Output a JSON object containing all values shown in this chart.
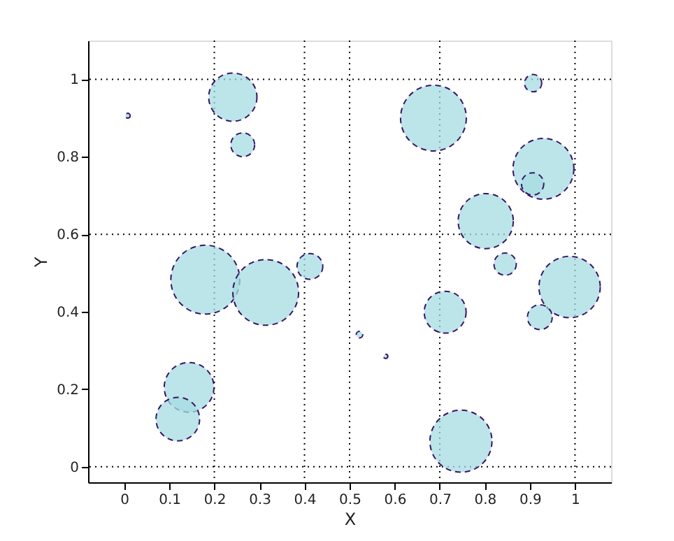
{
  "chart_data": {
    "type": "bubble",
    "xlabel": "X",
    "ylabel": "Y",
    "xlim": [
      -0.08,
      1.08
    ],
    "xticks": [
      0,
      0.1,
      0.2,
      0.3,
      0.4,
      0.5,
      0.6,
      0.7,
      0.8,
      0.9,
      1
    ],
    "ylim": [
      -0.04,
      1.1
    ],
    "yticks": [
      0,
      0.2,
      0.4,
      0.6,
      0.8,
      1
    ],
    "grid": false,
    "legend": false,
    "marker": "circle",
    "line_style": "dashed",
    "series": [
      {
        "color": "#a6dce2",
        "x": [
          0.008,
          0.241,
          0.263,
          0.18,
          0.314,
          0.412,
          0.907,
          0.686,
          0.93,
          0.906,
          0.802,
          0.845,
          0.988,
          0.712,
          0.922,
          0.522,
          0.58,
          0.144,
          0.119,
          0.747
        ],
        "values": [
          0.906,
          0.954,
          0.831,
          0.483,
          0.45,
          0.517,
          0.99,
          0.9,
          0.769,
          0.73,
          0.634,
          0.523,
          0.464,
          0.399,
          0.386,
          0.341,
          0.285,
          0.205,
          0.123,
          0.066
        ],
        "sizes": [
          0.005,
          0.49,
          0.12,
          1,
          0.91,
          0.14,
          0.063,
          0.91,
          0.78,
          0.105,
          0.64,
          0.105,
          0.79,
          0.37,
          0.13,
          0.009,
          0.004,
          0.52,
          0.4,
          0.81
        ]
      }
    ],
    "ref_lines": [
      {
        "axis": "x",
        "value": 0.2,
        "line_style": "dotted"
      },
      {
        "axis": "x",
        "value": 0.4,
        "line_style": "dotted"
      },
      {
        "axis": "x",
        "value": 0.5,
        "line_style": "dotted"
      },
      {
        "axis": "x",
        "value": 0.7,
        "line_style": "dotted"
      },
      {
        "axis": "x",
        "value": 1,
        "line_style": "dotted"
      },
      {
        "axis": "y",
        "value": 0,
        "line_style": "dotted"
      },
      {
        "axis": "y",
        "value": 0.6,
        "line_style": "dotted"
      },
      {
        "axis": "y",
        "value": 1,
        "line_style": "dotted"
      }
    ]
  }
}
